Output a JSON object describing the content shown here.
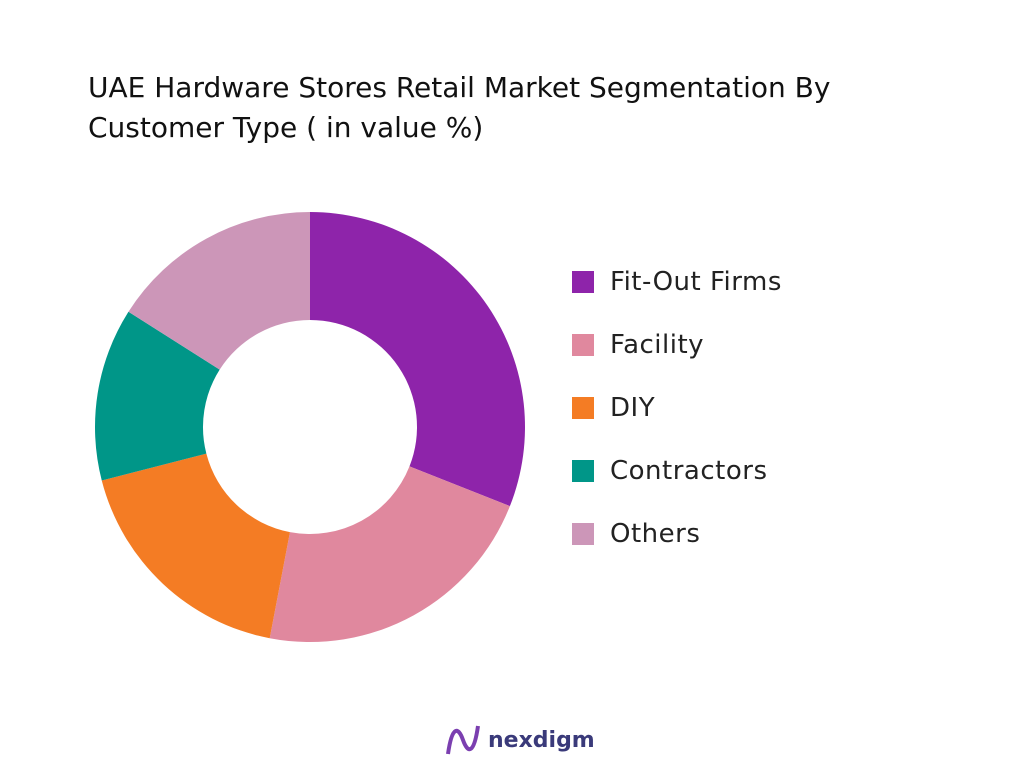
{
  "chart_data": {
    "type": "donut",
    "title": "UAE Hardware Stores Retail Market Segmentation By Customer Type ( in value %)",
    "categories": [
      "Fit-Out Firms",
      "Facility",
      "DIY",
      "Contractors",
      "Others"
    ],
    "values": [
      31,
      22,
      18,
      13,
      16
    ],
    "colors": [
      "#8e24aa",
      "#e0889e",
      "#f47c24",
      "#009688",
      "#cc96b8"
    ]
  },
  "brand": "nexdigm"
}
